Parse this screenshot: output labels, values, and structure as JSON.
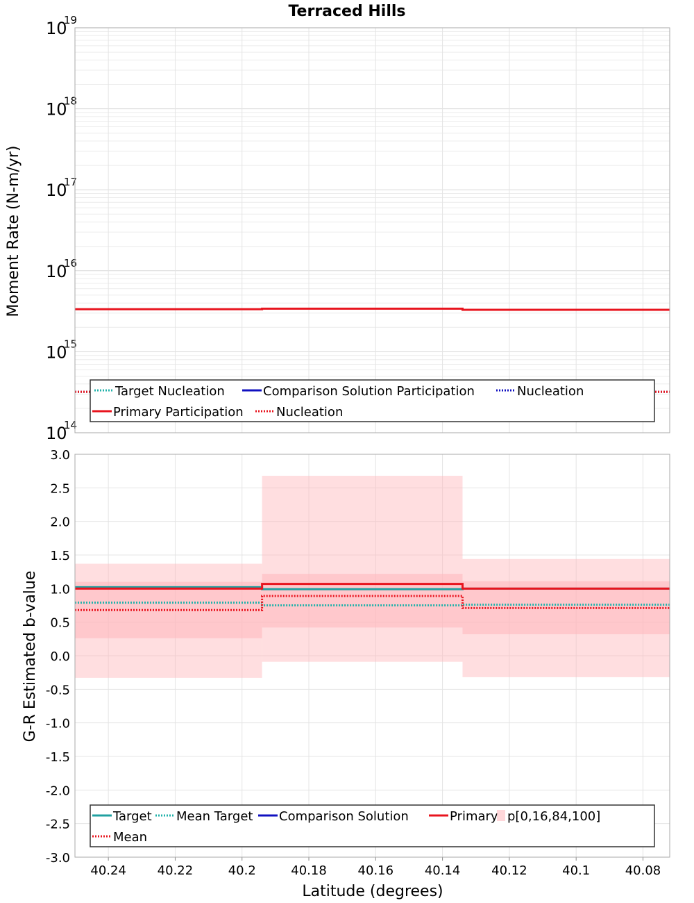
{
  "chart_data": [
    {
      "type": "line",
      "title": "Terraced Hills",
      "ylabel": "Moment Rate (N-m/yr)",
      "yscale": "log",
      "ylim": [
        100000000000000.0,
        1e+19
      ],
      "xlim": [
        40.25,
        40.072
      ],
      "x_reversed": true,
      "y_ticks": [
        {
          "base": "10",
          "exp": "14"
        },
        {
          "base": "10",
          "exp": "15"
        },
        {
          "base": "10",
          "exp": "16"
        },
        {
          "base": "10",
          "exp": "17"
        },
        {
          "base": "10",
          "exp": "18"
        },
        {
          "base": "10",
          "exp": "19"
        }
      ],
      "grid": true,
      "legend_position": "bottom",
      "bin_edges": [
        40.25,
        40.194,
        40.134,
        40.072
      ],
      "series": [
        {
          "name": "Target Nucleation",
          "style": "dotted",
          "color": "#20b2aa",
          "values": [
            320000000000000.0,
            320000000000000.0,
            320000000000000.0
          ]
        },
        {
          "name": "Comparison Solution Participation",
          "style": "solid",
          "color": "#1010c0",
          "values": null
        },
        {
          "name": "Nucleation",
          "style": "dotted",
          "color": "#1010c0",
          "values": [
            320000000000000.0,
            320000000000000.0,
            320000000000000.0
          ]
        },
        {
          "name": "Primary Participation",
          "style": "solid",
          "color": "#e8141e",
          "values": [
            3350000000000000.0,
            3400000000000000.0,
            3300000000000000.0
          ]
        },
        {
          "name": "Nucleation",
          "style": "dotted",
          "color": "#e8141e",
          "values": [
            320000000000000.0,
            320000000000000.0,
            320000000000000.0
          ]
        }
      ]
    },
    {
      "type": "line",
      "xlabel": "Latitude (degrees)",
      "ylabel": "G-R Estimated b-value",
      "ylim": [
        -3.0,
        3.0
      ],
      "xlim": [
        40.25,
        40.072
      ],
      "x_reversed": true,
      "y_ticks": [
        "3.0",
        "2.5",
        "2.0",
        "1.5",
        "1.0",
        "0.5",
        "0.0",
        "-0.5",
        "-1.0",
        "-1.5",
        "-2.0",
        "-2.5",
        "-3.0"
      ],
      "x_ticks": [
        "40.24",
        "40.22",
        "40.2",
        "40.18",
        "40.16",
        "40.14",
        "40.12",
        "40.1",
        "40.08"
      ],
      "grid": true,
      "legend_position": "bottom",
      "bin_edges": [
        40.25,
        40.194,
        40.134,
        40.072
      ],
      "bands": {
        "name": "p[0,16,84,100]",
        "color": "#ffb6bb",
        "p0": [
          -0.33,
          -0.09,
          -0.32
        ],
        "p16": [
          0.26,
          0.42,
          0.32
        ],
        "p84": [
          1.1,
          1.22,
          1.11
        ],
        "p100": [
          1.37,
          2.68,
          1.44
        ]
      },
      "series": [
        {
          "name": "Target",
          "style": "solid",
          "color": "#20a0a0",
          "values": [
            1.02,
            0.99,
            1.0
          ]
        },
        {
          "name": "Mean Target",
          "style": "dotted",
          "color": "#20b2aa",
          "values": [
            0.79,
            0.75,
            0.76
          ]
        },
        {
          "name": "Comparison Solution",
          "style": "solid",
          "color": "#1010c0",
          "values": null
        },
        {
          "name": "Primary",
          "style": "solid",
          "color": "#e8141e",
          "values": [
            1.0,
            1.07,
            1.0
          ]
        },
        {
          "name": "Mean",
          "style": "dotted",
          "color": "#e8141e",
          "values": [
            0.68,
            0.89,
            0.71
          ]
        }
      ]
    }
  ]
}
